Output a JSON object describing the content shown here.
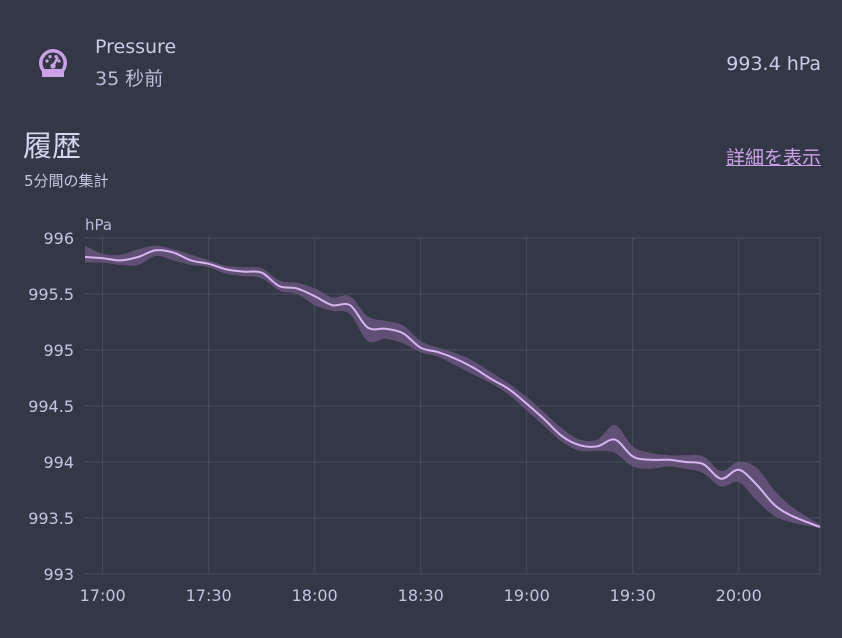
{
  "entity": {
    "name": "Pressure",
    "last_changed": "35 秒前",
    "state": "993.4 hPa",
    "icon": "gauge-icon"
  },
  "history": {
    "title": "履歴",
    "subtitle": "5分間の集計",
    "details_link": "詳細を表示"
  },
  "colors": {
    "background": "#343746",
    "line": "#d7b6ef",
    "band": "#6f5a86",
    "grid": "#4a4d5e",
    "accent": "#c9a2e6"
  },
  "chart_data": {
    "type": "line",
    "unit": "hPa",
    "ylim": [
      993,
      996
    ],
    "yticks": [
      "996",
      "995.5",
      "995",
      "994.5",
      "994",
      "993.5",
      "993"
    ],
    "xticks": [
      "17:00",
      "17:30",
      "18:00",
      "18:30",
      "19:00",
      "19:30",
      "20:00"
    ],
    "xlim": [
      "16:55",
      "20:23"
    ],
    "grid": true,
    "series": [
      {
        "x": [
          "16:55",
          "17:00",
          "17:05",
          "17:10",
          "17:15",
          "17:20",
          "17:25",
          "17:30",
          "17:35",
          "17:40",
          "17:45",
          "17:50",
          "17:55",
          "18:00",
          "18:05",
          "18:10",
          "18:15",
          "18:20",
          "18:25",
          "18:30",
          "18:35",
          "18:40",
          "18:45",
          "18:50",
          "18:55",
          "19:00",
          "19:05",
          "19:10",
          "19:15",
          "19:20",
          "19:25",
          "19:30",
          "19:35",
          "19:40",
          "19:45",
          "19:50",
          "19:55",
          "20:00",
          "20:05",
          "20:10",
          "20:15",
          "20:23"
        ],
        "values": [
          995.83,
          995.82,
          995.8,
          995.83,
          995.89,
          995.87,
          995.8,
          995.77,
          995.72,
          995.7,
          995.69,
          995.57,
          995.55,
          995.48,
          995.4,
          995.4,
          995.2,
          995.19,
          995.15,
          995.02,
          994.98,
          994.92,
          994.84,
          994.74,
          994.65,
          994.52,
          994.38,
          994.23,
          994.15,
          994.14,
          994.2,
          994.05,
          994.02,
          994.02,
          994.0,
          993.98,
          993.85,
          993.93,
          993.8,
          993.62,
          993.52,
          993.42
        ],
        "min": [
          995.78,
          995.78,
          995.76,
          995.76,
          995.84,
          995.8,
          995.76,
          995.74,
          995.68,
          995.66,
          995.64,
          995.53,
          995.5,
          995.4,
          995.35,
          995.32,
          995.08,
          995.1,
          995.06,
          994.98,
          994.94,
          994.86,
          994.78,
          994.7,
          994.6,
          994.46,
          994.32,
          994.18,
          994.1,
          994.1,
          994.08,
          993.96,
          993.94,
          993.96,
          993.94,
          993.9,
          993.78,
          993.82,
          993.66,
          993.52,
          993.46,
          993.41
        ],
        "max": [
          995.93,
          995.86,
          995.85,
          995.9,
          995.93,
          995.9,
          995.85,
          995.8,
          995.75,
          995.74,
          995.73,
          995.62,
          995.6,
          995.55,
          995.47,
          995.48,
          995.3,
          995.26,
          995.22,
          995.08,
          995.02,
          994.97,
          994.9,
          994.8,
          994.7,
          994.58,
          994.44,
          994.3,
          994.2,
          994.2,
          994.33,
          994.14,
          994.08,
          994.06,
          994.06,
          994.05,
          993.92,
          994.0,
          993.95,
          993.75,
          993.6,
          993.44
        ]
      }
    ]
  }
}
